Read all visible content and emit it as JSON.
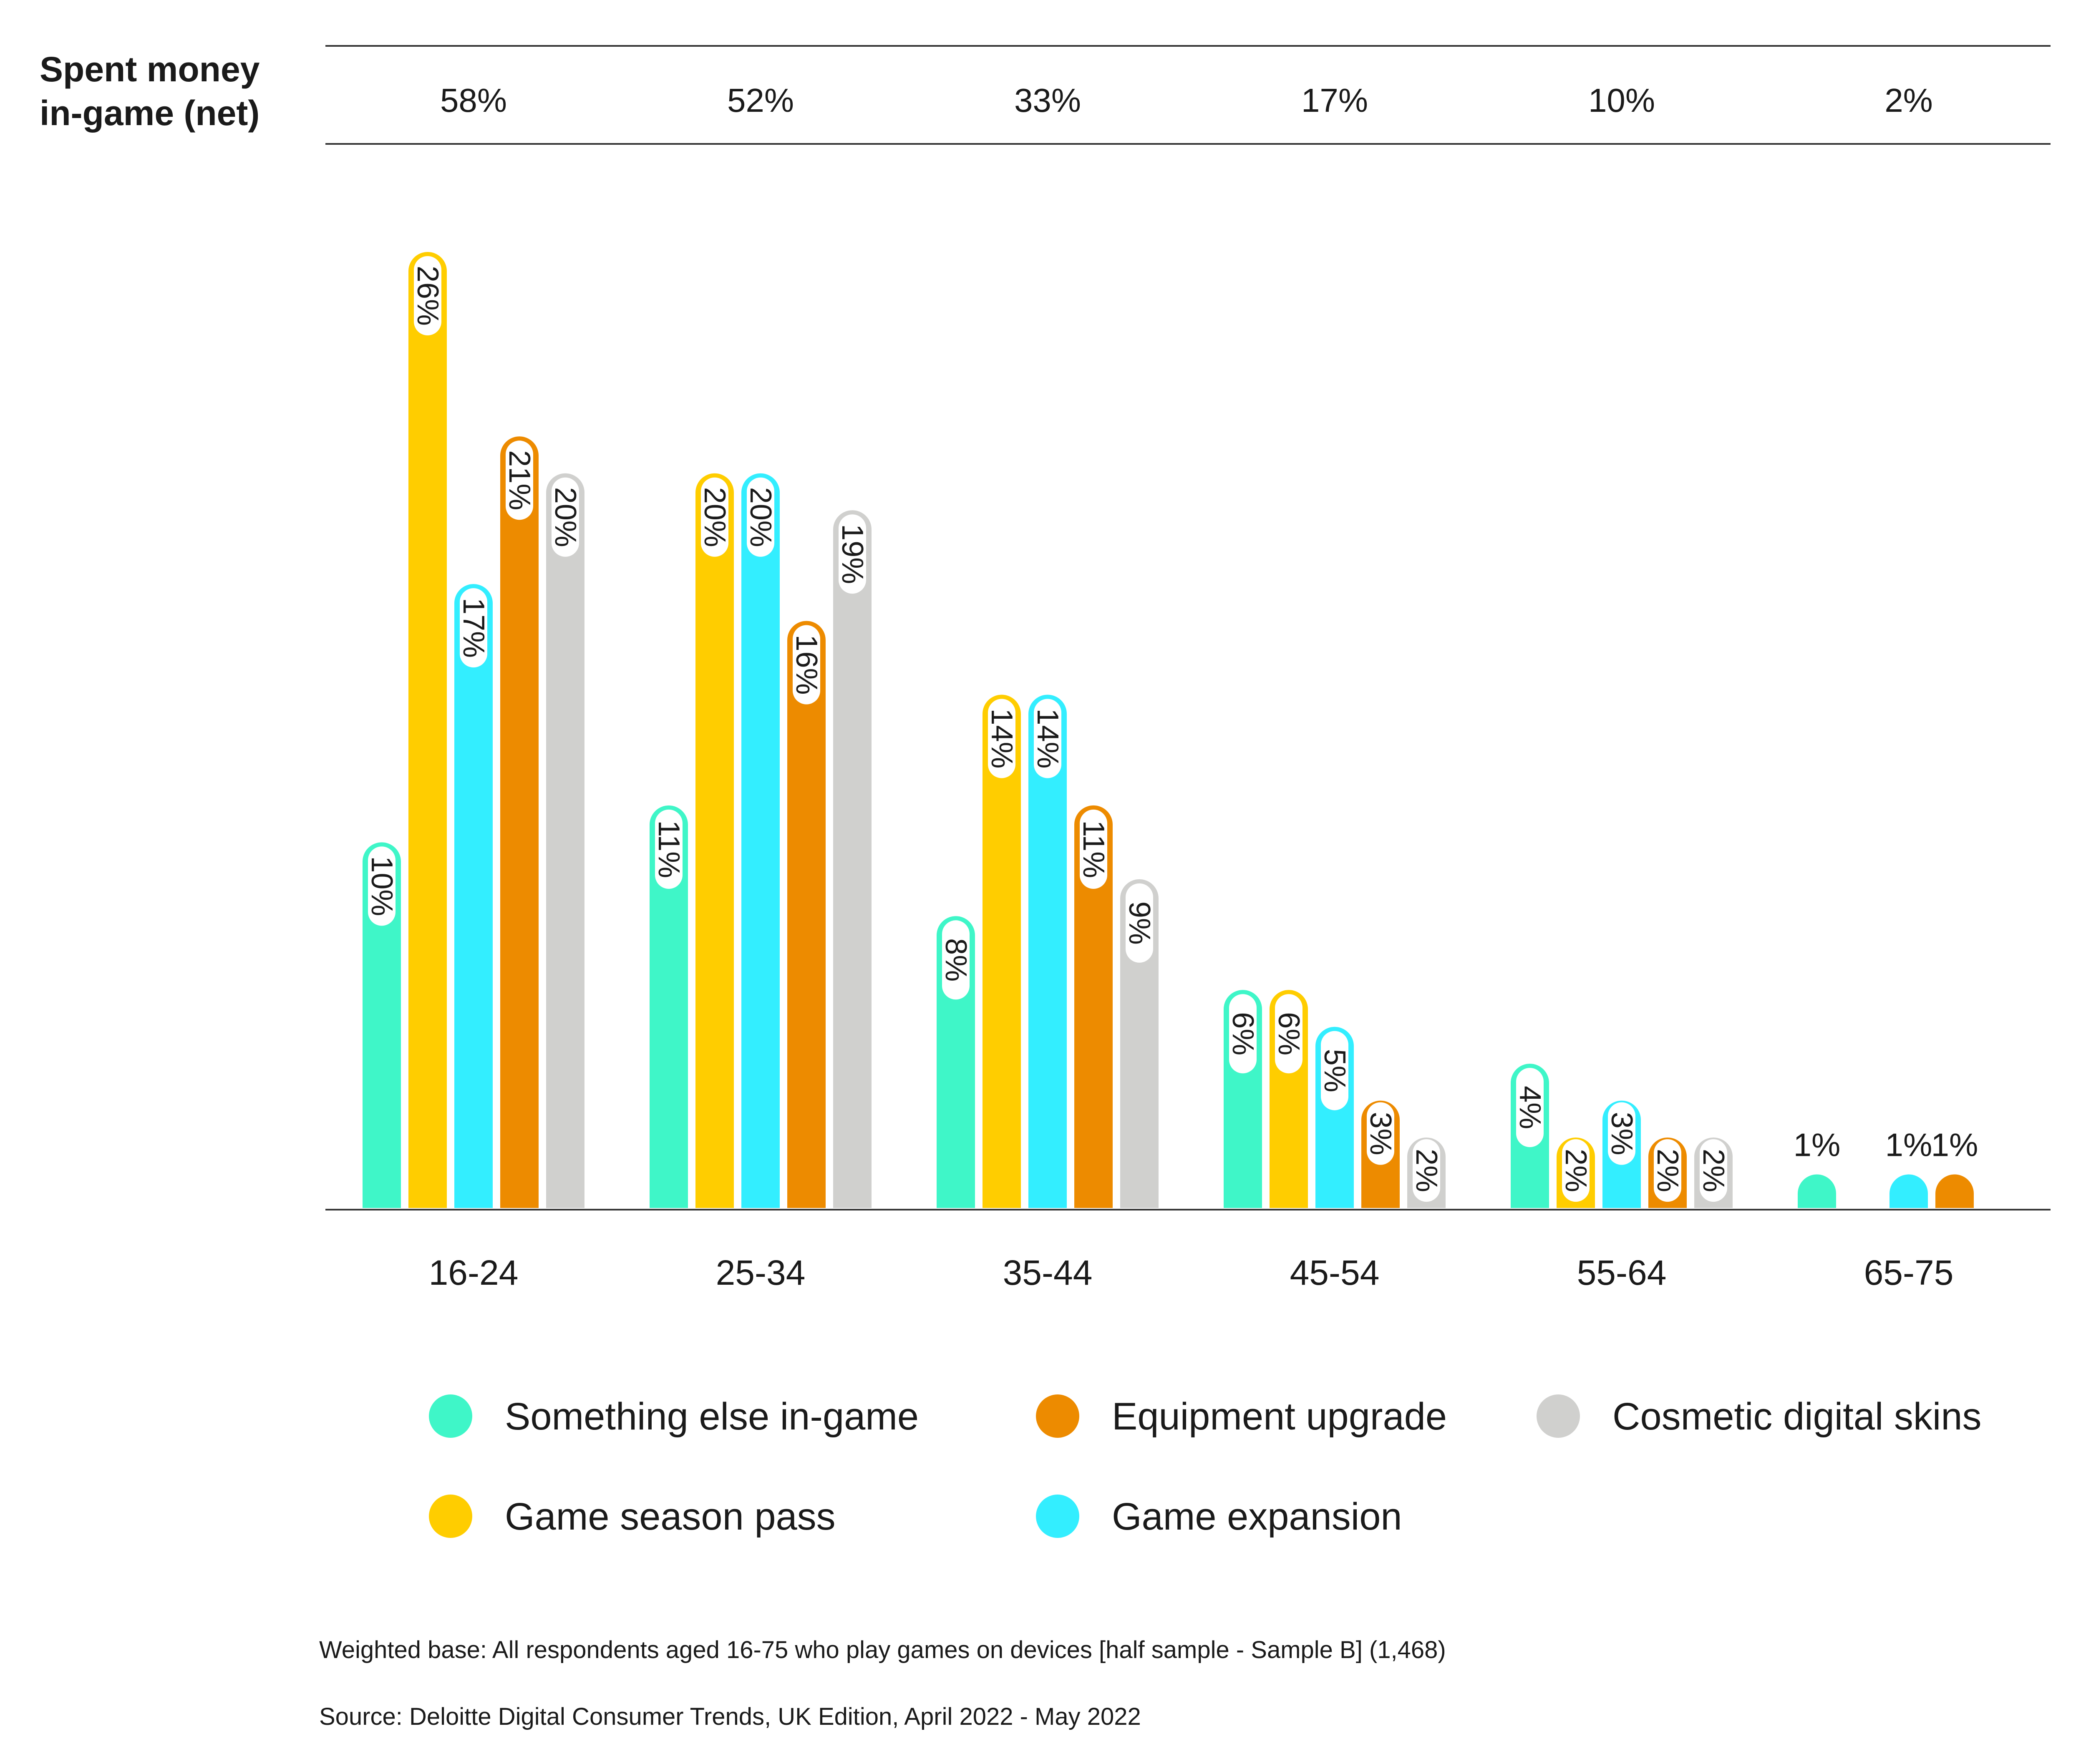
{
  "chart_data": {
    "type": "bar",
    "net_row": {
      "label_line1": "Spent money",
      "label_line2": "in-game (net)",
      "values": [
        "58%",
        "52%",
        "33%",
        "17%",
        "10%",
        "2%"
      ]
    },
    "categories": [
      "16-24",
      "25-34",
      "35-44",
      "45-54",
      "55-64",
      "65-75"
    ],
    "series": [
      {
        "name": "Something else in-game",
        "color": "#3ff6c8",
        "values": [
          10,
          11,
          8,
          6,
          4,
          1
        ]
      },
      {
        "name": "Game season pass",
        "color": "#ffcd00",
        "values": [
          26,
          20,
          14,
          6,
          2,
          null
        ]
      },
      {
        "name": "Game expansion",
        "color": "#33eeff",
        "values": [
          17,
          20,
          14,
          5,
          3,
          1
        ]
      },
      {
        "name": "Equipment upgrade",
        "color": "#ed8b00",
        "values": [
          21,
          16,
          11,
          3,
          2,
          1
        ]
      },
      {
        "name": "Cosmetic digital skins",
        "color": "#d0d0ce",
        "values": [
          20,
          19,
          9,
          2,
          2,
          null
        ]
      }
    ],
    "legend_order": [
      [
        "Something else in-game",
        "Equipment upgrade",
        "Cosmetic digital skins"
      ],
      [
        "Game season pass",
        "Game expansion"
      ]
    ],
    "ylim": [
      0,
      28
    ],
    "grid": false,
    "legend_placement": "bottom",
    "notes": {
      "base": "Weighted base: All respondents aged 16-75 who play games on devices [half sample - Sample B] (1,468)",
      "source": "Source: Deloitte Digital Consumer Trends, UK Edition, April 2022 - May 2022"
    }
  }
}
